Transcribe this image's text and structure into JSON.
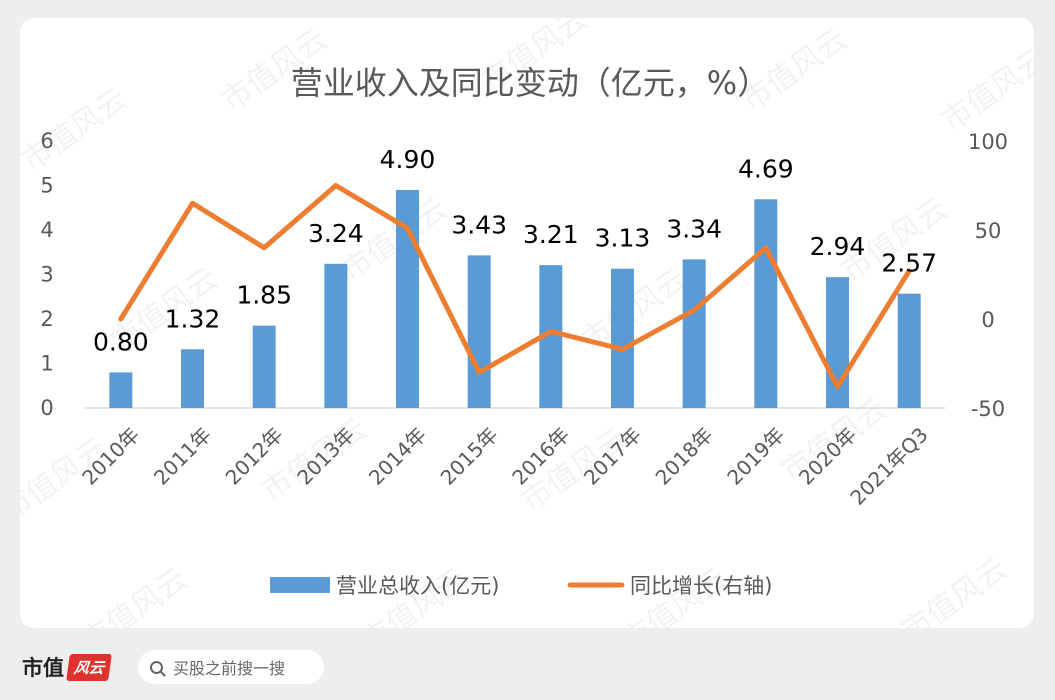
{
  "chart_data": {
    "type": "bar+line",
    "title": "营业收入及同比变动（亿元，%）",
    "categories": [
      "2010年",
      "2011年",
      "2012年",
      "2013年",
      "2014年",
      "2015年",
      "2016年",
      "2017年",
      "2018年",
      "2019年",
      "2020年",
      "2021年Q3"
    ],
    "series": [
      {
        "name": "营业总收入(亿元)",
        "type": "bar",
        "axis": "left",
        "color": "#5b9bd5",
        "values": [
          0.8,
          1.32,
          1.85,
          3.24,
          4.9,
          3.43,
          3.21,
          3.13,
          3.34,
          4.69,
          2.94,
          2.57
        ],
        "labels": [
          "0.80",
          "1.32",
          "1.85",
          "3.24",
          "4.90",
          "3.43",
          "3.21",
          "3.13",
          "3.34",
          "4.69",
          "2.94",
          "2.57"
        ]
      },
      {
        "name": "同比增长(右轴)",
        "type": "line",
        "axis": "right",
        "color": "#ed7d31",
        "values": [
          0,
          65,
          40,
          75,
          51,
          -30,
          -7,
          -17,
          5,
          40,
          -38,
          27
        ]
      }
    ],
    "y_left": {
      "min": 0,
      "max": 6,
      "ticks": [
        "0",
        "1",
        "2",
        "3",
        "4",
        "5",
        "6"
      ]
    },
    "y_right": {
      "min": -50,
      "max": 100,
      "ticks": [
        "-50",
        "0",
        "50",
        "100"
      ]
    },
    "legend_position": "bottom",
    "grid": false
  },
  "watermark": "市值风云",
  "brand": {
    "name": "市值",
    "seal": "风云"
  },
  "search": {
    "placeholder": "买股之前搜一搜"
  },
  "colors": {
    "bar": "#5b9bd5",
    "line": "#ed7d31",
    "text": "#595959"
  }
}
